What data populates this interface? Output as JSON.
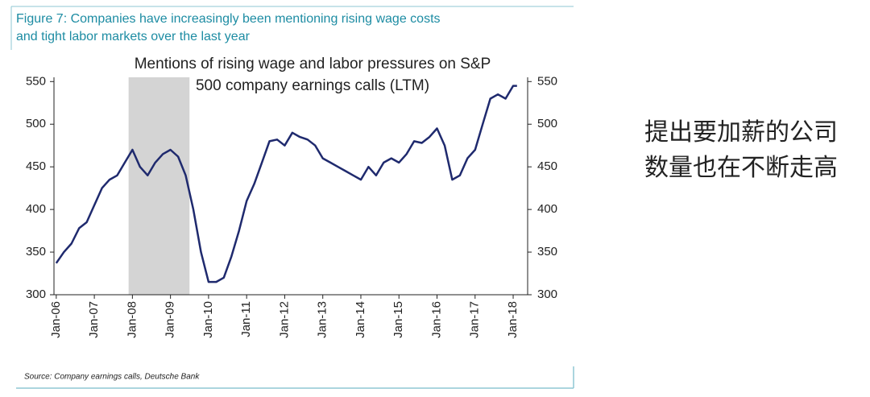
{
  "chart_data": {
    "type": "line",
    "figure_title": [
      "Figure 7: Companies have increasingly been mentioning rising wage costs",
      "and tight labor markets over the last year"
    ],
    "title": [
      "Mentions of rising wage and labor pressures on S&P",
      "500 company earnings calls (LTM)"
    ],
    "source": "Source: Company earnings calls, Deutsche Bank",
    "annotation": [
      "提出要加薪的公司",
      "数量也在不断走高"
    ],
    "x": [
      2006.0,
      2006.2,
      2006.4,
      2006.6,
      2006.8,
      2007.0,
      2007.2,
      2007.4,
      2007.6,
      2007.8,
      2008.0,
      2008.2,
      2008.4,
      2008.6,
      2008.8,
      2009.0,
      2009.2,
      2009.4,
      2009.6,
      2009.8,
      2010.0,
      2010.2,
      2010.4,
      2010.6,
      2010.8,
      2011.0,
      2011.2,
      2011.4,
      2011.6,
      2011.8,
      2012.0,
      2012.2,
      2012.4,
      2012.6,
      2012.8,
      2013.0,
      2013.2,
      2013.4,
      2013.6,
      2013.8,
      2014.0,
      2014.2,
      2014.4,
      2014.6,
      2014.8,
      2015.0,
      2015.2,
      2015.4,
      2015.6,
      2015.8,
      2016.0,
      2016.2,
      2016.4,
      2016.6,
      2016.8,
      2017.0,
      2017.2,
      2017.4,
      2017.6,
      2017.8,
      2018.0,
      2018.1
    ],
    "series": [
      {
        "color": "#1f2a6e",
        "values": [
          337,
          350,
          360,
          378,
          385,
          405,
          425,
          435,
          440,
          455,
          470,
          450,
          440,
          455,
          465,
          470,
          462,
          440,
          400,
          350,
          315,
          315,
          320,
          345,
          375,
          410,
          430,
          455,
          480,
          482,
          475,
          490,
          485,
          482,
          475,
          460,
          455,
          450,
          445,
          440,
          435,
          450,
          440,
          455,
          460,
          455,
          465,
          480,
          478,
          485,
          495,
          475,
          435,
          440,
          460,
          470,
          500,
          530,
          535,
          530,
          545,
          545
        ]
      }
    ],
    "shade": [
      2007.9,
      2009.5
    ],
    "shade_color": "#d4d4d4",
    "xlim": [
      2005.94,
      2018.38
    ],
    "xticks": [
      {
        "value": 2006,
        "label": "Jan-06"
      },
      {
        "value": 2007,
        "label": "Jan-07"
      },
      {
        "value": 2008,
        "label": "Jan-08"
      },
      {
        "value": 2009,
        "label": "Jan-09"
      },
      {
        "value": 2010,
        "label": "Jan-10"
      },
      {
        "value": 2011,
        "label": "Jan-11"
      },
      {
        "value": 2012,
        "label": "Jan-12"
      },
      {
        "value": 2013,
        "label": "Jan-13"
      },
      {
        "value": 2014,
        "label": "Jan-14"
      },
      {
        "value": 2015,
        "label": "Jan-15"
      },
      {
        "value": 2016,
        "label": "Jan-16"
      },
      {
        "value": 2017,
        "label": "Jan-17"
      },
      {
        "value": 2018,
        "label": "Jan-18"
      }
    ],
    "ylim": [
      300,
      555
    ],
    "yticks": [
      300,
      350,
      400,
      450,
      500,
      550
    ],
    "y2lim": [
      300,
      555
    ],
    "y2ticks": [
      300,
      350,
      400,
      450,
      500,
      550
    ]
  }
}
